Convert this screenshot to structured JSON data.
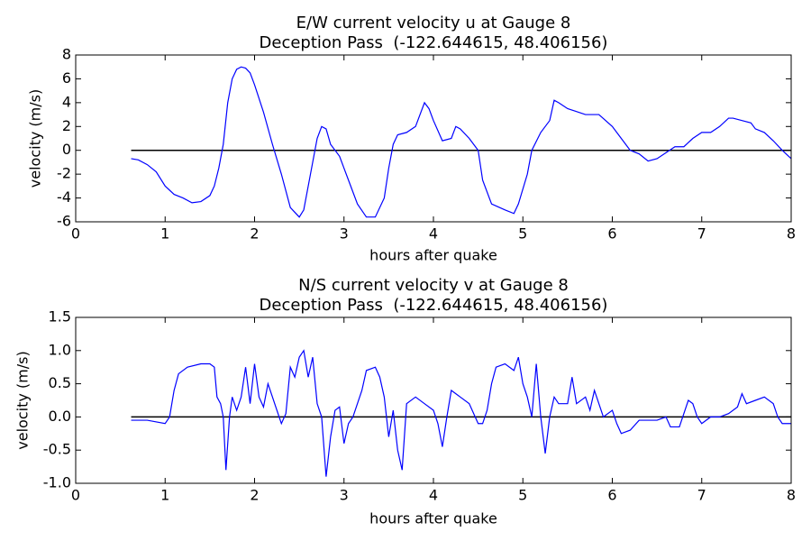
{
  "chart_data": [
    {
      "type": "line",
      "title": [
        "E/W current velocity u at Gauge 8",
        "Deception Pass  (-122.644615, 48.406156)"
      ],
      "xlabel": "hours after quake",
      "ylabel": "velocity (m/s)",
      "xlim": [
        0,
        8
      ],
      "xticks": [
        0,
        1,
        2,
        3,
        4,
        5,
        6,
        7,
        8
      ],
      "ylim": [
        -6,
        8
      ],
      "yticks": [
        -6,
        -4,
        -2,
        0,
        2,
        4,
        6,
        8
      ],
      "reference_line": {
        "y": 0,
        "x": [
          0.62,
          8
        ],
        "color": "#000000"
      },
      "series": [
        {
          "color": "#0000ff",
          "x": [
            0.62,
            0.7,
            0.8,
            0.9,
            1.0,
            1.1,
            1.2,
            1.3,
            1.4,
            1.5,
            1.55,
            1.6,
            1.65,
            1.7,
            1.75,
            1.8,
            1.85,
            1.9,
            1.95,
            2.0,
            2.1,
            2.2,
            2.3,
            2.4,
            2.5,
            2.55,
            2.65,
            2.7,
            2.75,
            2.8,
            2.85,
            2.95,
            3.05,
            3.15,
            3.25,
            3.35,
            3.45,
            3.5,
            3.55,
            3.6,
            3.7,
            3.8,
            3.85,
            3.9,
            3.95,
            4.0,
            4.1,
            4.2,
            4.25,
            4.3,
            4.4,
            4.5,
            4.55,
            4.65,
            4.8,
            4.9,
            4.95,
            5.05,
            5.1,
            5.2,
            5.3,
            5.35,
            5.4,
            5.5,
            5.7,
            5.85,
            6.0,
            6.1,
            6.2,
            6.3,
            6.4,
            6.5,
            6.6,
            6.7,
            6.8,
            6.9,
            7.0,
            7.1,
            7.2,
            7.3,
            7.35,
            7.45,
            7.55,
            7.6,
            7.7,
            7.8,
            7.9,
            8.0
          ],
          "values": [
            -0.7,
            -0.8,
            -1.2,
            -1.8,
            -3.0,
            -3.7,
            -4.0,
            -4.4,
            -4.3,
            -3.8,
            -3.0,
            -1.5,
            0.5,
            4.0,
            6.0,
            6.8,
            7.0,
            6.9,
            6.5,
            5.5,
            3.2,
            0.5,
            -2.0,
            -4.8,
            -5.6,
            -5.0,
            -1.0,
            1.0,
            2.0,
            1.8,
            0.5,
            -0.5,
            -2.5,
            -4.5,
            -5.6,
            -5.6,
            -4.0,
            -1.5,
            0.5,
            1.3,
            1.5,
            2.0,
            3.0,
            4.0,
            3.5,
            2.5,
            0.8,
            1.0,
            2.0,
            1.8,
            1.0,
            0.0,
            -2.5,
            -4.5,
            -5.0,
            -5.3,
            -4.5,
            -2.0,
            0.0,
            1.5,
            2.5,
            4.2,
            4.0,
            3.5,
            3.0,
            3.0,
            2.0,
            1.0,
            0.0,
            -0.3,
            -0.9,
            -0.7,
            -0.2,
            0.3,
            0.3,
            1.0,
            1.5,
            1.5,
            2.0,
            2.7,
            2.7,
            2.5,
            2.3,
            1.8,
            1.5,
            0.8,
            0.0,
            -0.7
          ]
        }
      ]
    },
    {
      "type": "line",
      "title": [
        "N/S current velocity v at Gauge 8",
        "Deception Pass  (-122.644615, 48.406156)"
      ],
      "xlabel": "hours after quake",
      "ylabel": "velocity (m/s)",
      "xlim": [
        0,
        8
      ],
      "xticks": [
        0,
        1,
        2,
        3,
        4,
        5,
        6,
        7,
        8
      ],
      "ylim": [
        -1,
        1.5
      ],
      "yticks": [
        {
          "value": -1,
          "label": "-1.0"
        },
        {
          "value": -0.5,
          "label": "-0.5"
        },
        {
          "value": 0,
          "label": "0.0"
        },
        {
          "value": 0.5,
          "label": "0.5"
        },
        {
          "value": 1,
          "label": "1.0"
        },
        {
          "value": 1.5,
          "label": "1.5"
        }
      ],
      "reference_line": {
        "y": 0,
        "x": [
          0.62,
          8
        ],
        "color": "#000000"
      },
      "series": [
        {
          "color": "#0000ff",
          "x": [
            0.62,
            0.8,
            1.0,
            1.05,
            1.1,
            1.15,
            1.25,
            1.4,
            1.5,
            1.55,
            1.58,
            1.62,
            1.65,
            1.68,
            1.72,
            1.75,
            1.8,
            1.85,
            1.9,
            1.95,
            2.0,
            2.05,
            2.1,
            2.15,
            2.2,
            2.25,
            2.3,
            2.35,
            2.4,
            2.45,
            2.5,
            2.55,
            2.6,
            2.65,
            2.7,
            2.75,
            2.8,
            2.85,
            2.9,
            2.95,
            3.0,
            3.05,
            3.1,
            3.15,
            3.2,
            3.25,
            3.35,
            3.4,
            3.45,
            3.5,
            3.55,
            3.6,
            3.65,
            3.7,
            3.8,
            3.9,
            4.0,
            4.05,
            4.1,
            4.15,
            4.2,
            4.3,
            4.4,
            4.5,
            4.55,
            4.6,
            4.65,
            4.7,
            4.8,
            4.9,
            4.95,
            5.0,
            5.05,
            5.1,
            5.15,
            5.2,
            5.25,
            5.3,
            5.35,
            5.4,
            5.5,
            5.55,
            5.6,
            5.7,
            5.75,
            5.8,
            5.85,
            5.9,
            6.0,
            6.05,
            6.1,
            6.2,
            6.3,
            6.4,
            6.5,
            6.6,
            6.65,
            6.75,
            6.8,
            6.85,
            6.9,
            6.95,
            7.0,
            7.1,
            7.2,
            7.3,
            7.4,
            7.45,
            7.5,
            7.6,
            7.7,
            7.8,
            7.85,
            7.9,
            8.0
          ],
          "values": [
            -0.05,
            -0.05,
            -0.1,
            0.0,
            0.4,
            0.65,
            0.75,
            0.8,
            0.8,
            0.75,
            0.3,
            0.2,
            0.0,
            -0.8,
            0.0,
            0.3,
            0.1,
            0.3,
            0.75,
            0.2,
            0.8,
            0.3,
            0.15,
            0.5,
            0.3,
            0.1,
            -0.1,
            0.05,
            0.75,
            0.6,
            0.9,
            1.0,
            0.6,
            0.9,
            0.2,
            0.0,
            -0.9,
            -0.3,
            0.1,
            0.15,
            -0.4,
            -0.1,
            0.0,
            0.2,
            0.4,
            0.7,
            0.75,
            0.6,
            0.3,
            -0.3,
            0.1,
            -0.5,
            -0.8,
            0.2,
            0.3,
            0.2,
            0.1,
            -0.1,
            -0.45,
            0.0,
            0.4,
            0.3,
            0.2,
            -0.1,
            -0.1,
            0.1,
            0.5,
            0.75,
            0.8,
            0.7,
            0.9,
            0.5,
            0.3,
            0.0,
            0.8,
            0.0,
            -0.55,
            0.0,
            0.3,
            0.2,
            0.2,
            0.6,
            0.2,
            0.3,
            0.1,
            0.4,
            0.2,
            0.0,
            0.1,
            -0.1,
            -0.25,
            -0.2,
            -0.05,
            -0.05,
            -0.05,
            0.0,
            -0.15,
            -0.15,
            0.05,
            0.25,
            0.2,
            0.0,
            -0.1,
            0.0,
            0.0,
            0.05,
            0.15,
            0.35,
            0.2,
            0.25,
            0.3,
            0.2,
            0.0,
            -0.1,
            -0.1
          ]
        }
      ]
    }
  ]
}
